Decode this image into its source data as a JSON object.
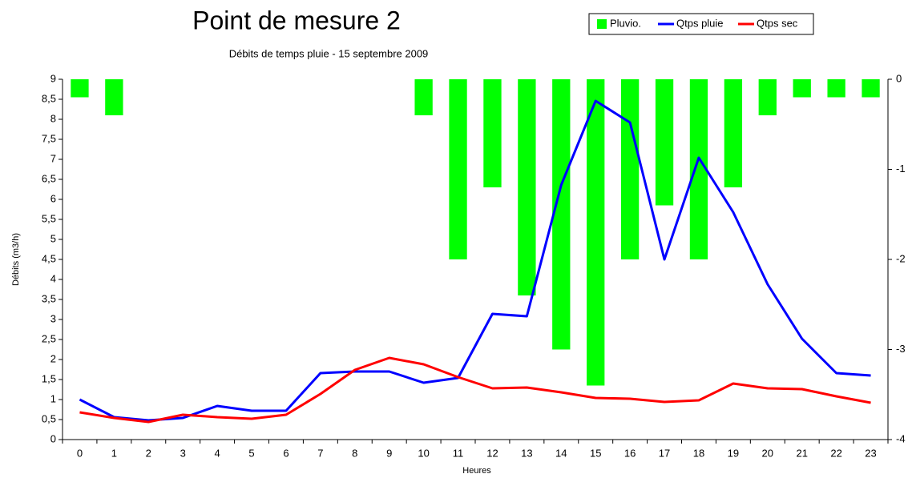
{
  "chart_data": {
    "type": "combo",
    "title": "Point de mesure 2",
    "subtitle": "Débits de temps pluie - 15 septembre 2009",
    "x_label": "Heures",
    "y_label": "Débits (m3/h)",
    "categories": [
      "0",
      "1",
      "2",
      "3",
      "4",
      "5",
      "6",
      "7",
      "8",
      "9",
      "10",
      "11",
      "12",
      "13",
      "14",
      "15",
      "16",
      "17",
      "18",
      "19",
      "20",
      "21",
      "22",
      "23"
    ],
    "series": [
      {
        "name": "Pluvio.",
        "type": "bar",
        "axis": "y2",
        "color": "#00ff00",
        "values": [
          -0.2,
          -0.4,
          0,
          0,
          0,
          0,
          0,
          0,
          0,
          0,
          -0.4,
          -2,
          -1.2,
          -2.4,
          -3,
          -3.4,
          -2,
          -1.4,
          -2,
          -1.2,
          -0.4,
          -0.2,
          -0.2,
          -0.2
        ]
      },
      {
        "name": "Qtps pluie",
        "type": "line",
        "color": "#0000ff",
        "values": [
          1.0,
          0.56,
          0.48,
          0.54,
          0.84,
          0.72,
          0.72,
          1.66,
          1.7,
          1.7,
          1.42,
          1.54,
          3.14,
          3.08,
          6.36,
          8.46,
          7.92,
          4.5,
          7.04,
          5.68,
          3.88,
          2.52,
          1.66,
          1.6
        ]
      },
      {
        "name": "Qtps sec",
        "type": "line",
        "color": "#ff0000",
        "values": [
          0.68,
          0.54,
          0.44,
          0.62,
          0.56,
          0.52,
          0.62,
          1.14,
          1.74,
          2.04,
          1.88,
          1.56,
          1.28,
          1.3,
          1.18,
          1.04,
          1.02,
          0.94,
          0.98,
          1.4,
          1.28,
          1.26,
          1.08,
          0.92
        ]
      }
    ],
    "ylim": [
      0,
      9
    ],
    "yticks": [
      0,
      {
        "value": 0.5,
        "label": "0,5"
      },
      1,
      {
        "value": 1.5,
        "label": "1,5"
      },
      2,
      {
        "value": 2.5,
        "label": "2,5"
      },
      3,
      {
        "value": 3.5,
        "label": "3,5"
      },
      4,
      {
        "value": 4.5,
        "label": "4,5"
      },
      5,
      {
        "value": 5.5,
        "label": "5,5"
      },
      6,
      {
        "value": 6.5,
        "label": "6,5"
      },
      7,
      {
        "value": 7.5,
        "label": "7,5"
      },
      8,
      {
        "value": 8.5,
        "label": "8,5"
      },
      9
    ],
    "y2lim": [
      -4,
      0
    ],
    "y2ticks": [
      0,
      -1,
      -2,
      -3,
      -4
    ],
    "grid": false,
    "legend": "top-right"
  }
}
